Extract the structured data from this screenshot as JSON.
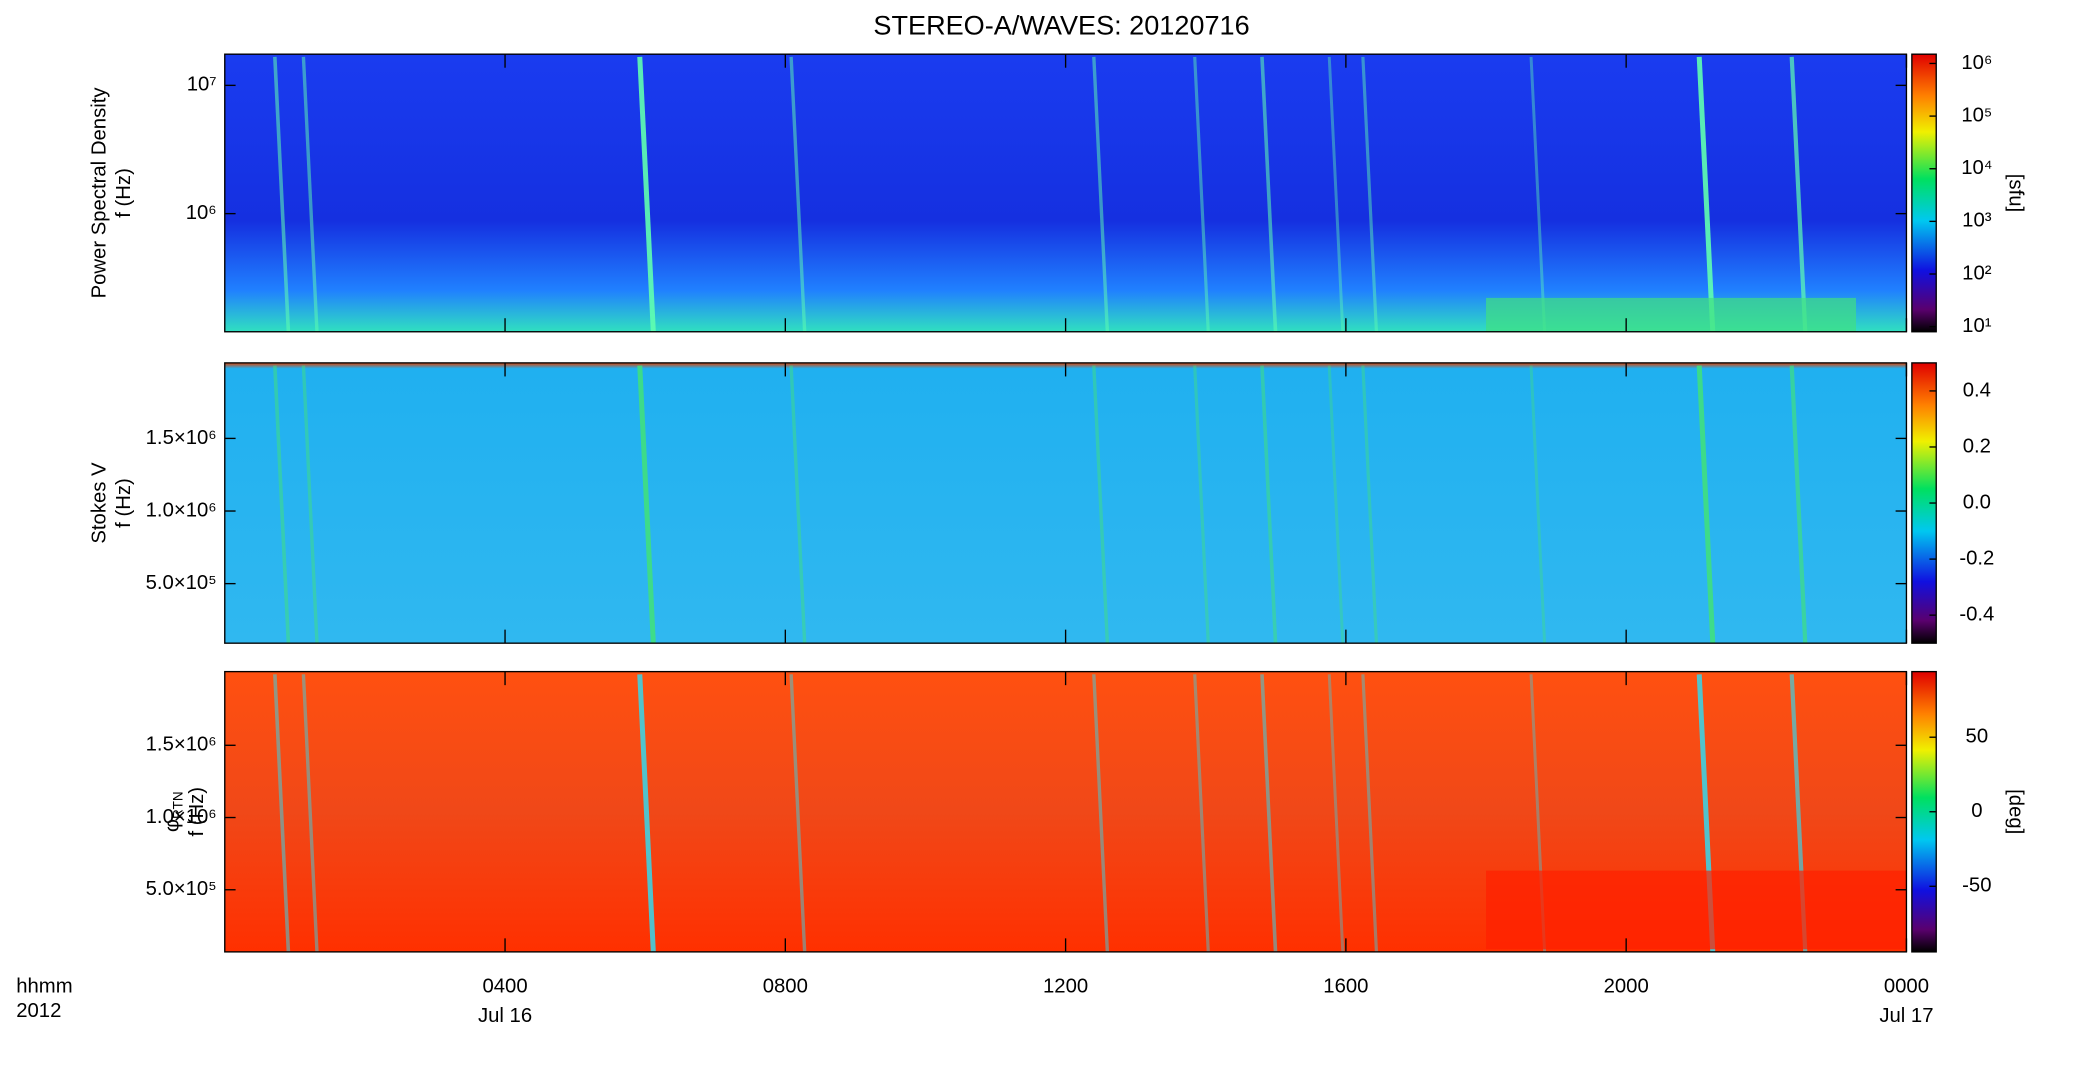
{
  "chart_data": [
    {
      "type": "spectrogram",
      "title": "STEREO-A/WAVES: 20120716",
      "ylabel": "Power Spectral Density",
      "ylabel2": "f (Hz)",
      "xlim": [
        0,
        24
      ],
      "yscale": "log",
      "ylim": [
        120000,
        17500000
      ],
      "yticks": [
        {
          "value": 10000000,
          "label": "10⁷"
        },
        {
          "value": 1000000,
          "label": "10⁶"
        }
      ],
      "colorbar": {
        "scale": "log",
        "lim": [
          8,
          1500000
        ],
        "label": "[sfu]",
        "ticks": [
          {
            "value": 1000000,
            "label": "10⁶"
          },
          {
            "value": 100000,
            "label": "10⁵"
          },
          {
            "value": 10000,
            "label": "10⁴"
          },
          {
            "value": 1000,
            "label": "10³"
          },
          {
            "value": 100,
            "label": "10²"
          },
          {
            "value": 10,
            "label": "10¹"
          }
        ]
      }
    },
    {
      "type": "spectrogram",
      "ylabel": "Stokes V",
      "ylabel2": "f (Hz)",
      "xlim": [
        0,
        24
      ],
      "yscale": "linear",
      "ylim": [
        90000,
        2020000
      ],
      "yticks": [
        {
          "value": 1500000,
          "label": "1.5×10⁶"
        },
        {
          "value": 1000000,
          "label": "1.0×10⁶"
        },
        {
          "value": 500000,
          "label": "5.0×10⁵"
        }
      ],
      "colorbar": {
        "scale": "linear",
        "lim": [
          -0.5,
          0.5
        ],
        "ticks": [
          0.4,
          0.2,
          {
            "value": 0,
            "label": "0.0"
          },
          -0.2,
          -0.4
        ]
      }
    },
    {
      "type": "spectrogram",
      "ylabel": "φ",
      "ylabel_sub": "RTN",
      "ylabel2": "f (Hz)",
      "xlim": [
        0,
        24
      ],
      "yscale": "linear",
      "ylim": [
        70000,
        2010000
      ],
      "yticks": [
        {
          "value": 1500000,
          "label": "1.5×10⁶"
        },
        {
          "value": 1000000,
          "label": "1.0×10⁶"
        },
        {
          "value": 500000,
          "label": "5.0×10⁵"
        }
      ],
      "colorbar": {
        "scale": "linear",
        "lim": [
          -94,
          94
        ],
        "label": "[deg]",
        "ticks": [
          50,
          0,
          -50
        ]
      },
      "xlabel": "hhmm",
      "xlabel2": "2012",
      "xticks": [
        {
          "value": 4,
          "label": "0400"
        },
        {
          "value": 8,
          "label": "0800"
        },
        {
          "value": 12,
          "label": "1200"
        },
        {
          "value": 16,
          "label": "1600"
        },
        {
          "value": 20,
          "label": "2000"
        },
        {
          "value": 24,
          "label": "0000"
        }
      ],
      "xtick_dates": [
        {
          "value": 4,
          "label": "Jul 16"
        },
        {
          "value": 24,
          "label": "Jul 17"
        }
      ]
    }
  ]
}
